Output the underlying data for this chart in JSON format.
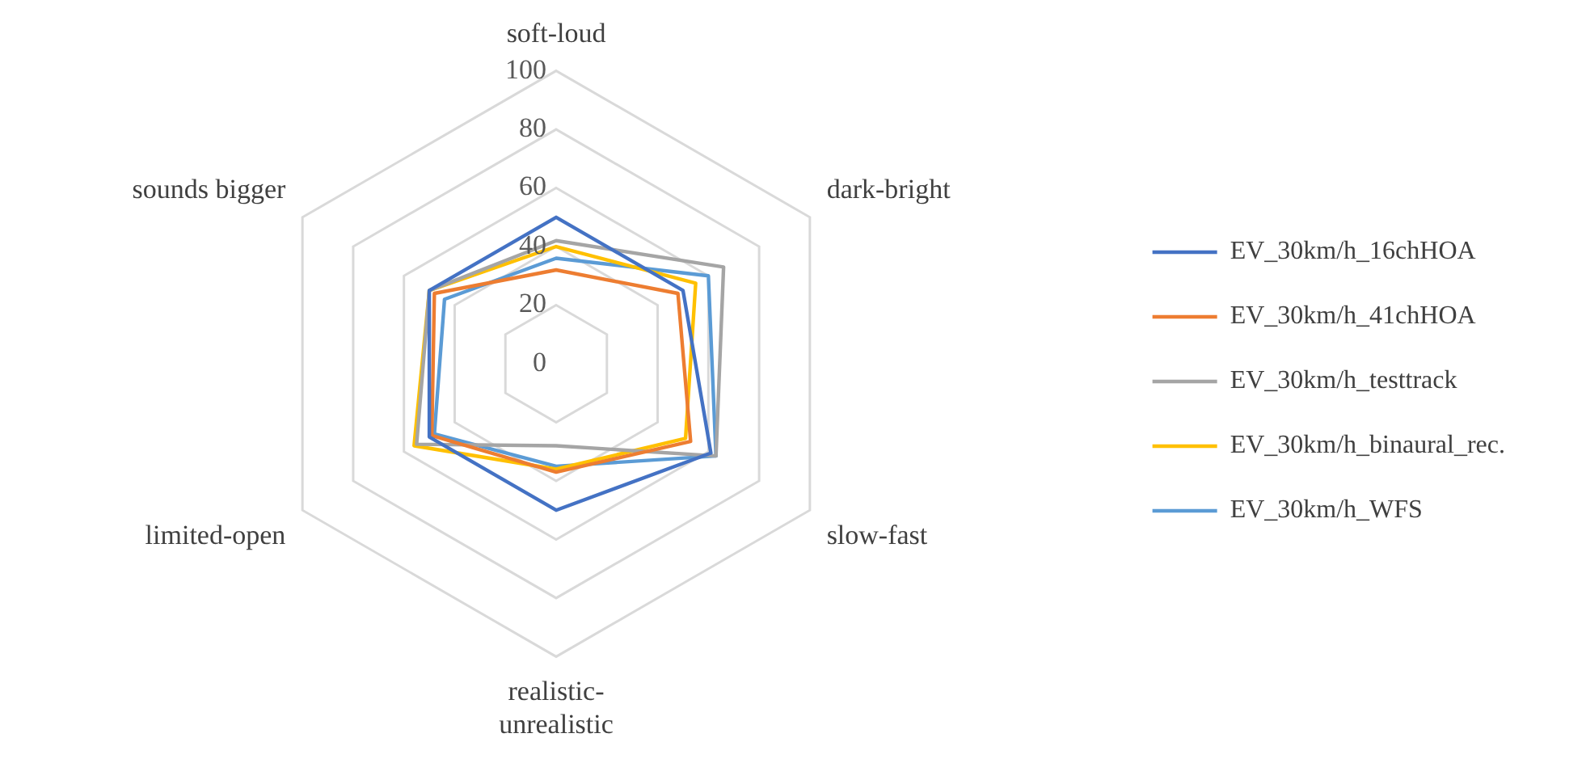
{
  "chart_data": {
    "type": "radar",
    "categories": [
      "soft-loud",
      "dark-bright",
      "slow-fast",
      "realistic-unrealistic",
      "limited-open",
      "sounds bigger"
    ],
    "series": [
      {
        "name": "EV_30km/h_16chHOA",
        "color": "#4472c4",
        "values": [
          50,
          50,
          61,
          50,
          50,
          50
        ]
      },
      {
        "name": "EV_30km/h_41chHOA",
        "color": "#ed7d31",
        "values": [
          32,
          48,
          53,
          37,
          49,
          48
        ]
      },
      {
        "name": "EV_30km/h_testtrack",
        "color": "#a5a5a5",
        "values": [
          42,
          66,
          63,
          28,
          55,
          50
        ]
      },
      {
        "name": "EV_30km/h_binaural_rec.",
        "color": "#ffc000",
        "values": [
          40,
          55,
          51,
          36,
          56,
          50
        ]
      },
      {
        "name": "EV_30km/h_WFS",
        "color": "#5b9bd5",
        "values": [
          36,
          60,
          63,
          35,
          48,
          44
        ]
      }
    ],
    "ylim": [
      0,
      100
    ],
    "yticks": [
      0,
      20,
      40,
      60,
      80,
      100
    ],
    "grid": true,
    "legend": "right",
    "marker": "none",
    "line_style": "solid"
  }
}
